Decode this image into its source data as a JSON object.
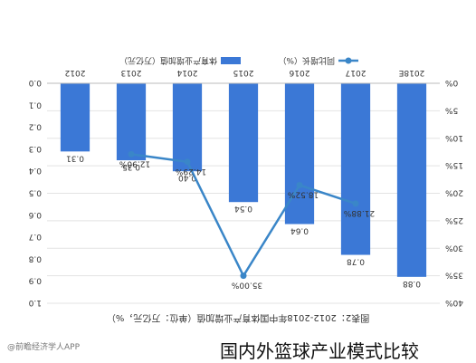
{
  "caption": "国内外篮球产业模式比较",
  "source": "@前瞻经济学人APP",
  "chart_data": {
    "type": "bar",
    "title": "图表2：2012-2018年中国体育产业增加值（单位：万亿元，%）",
    "categories": [
      "2018E",
      "2017",
      "2016",
      "2015",
      "2014",
      "2013",
      "2012"
    ],
    "series": [
      {
        "name": "体育产业增加值（万亿元）",
        "type": "bar",
        "axis": "right",
        "values": [
          0.88,
          0.78,
          0.64,
          0.54,
          0.4,
          0.35,
          0.31
        ],
        "labels": [
          "0.88",
          "0.78",
          "0.64",
          "0.54",
          "0.40",
          "0.35",
          "0.31"
        ]
      },
      {
        "name": "同比增长（%）",
        "type": "line",
        "axis": "left",
        "values": [
          null,
          21.88,
          18.52,
          35.0,
          14.29,
          12.9,
          null
        ],
        "labels": [
          "",
          "21.88%",
          "18.52%",
          "35.00%",
          "14.29%",
          "12.90%",
          ""
        ]
      }
    ],
    "left_axis": {
      "ylim": [
        0,
        40
      ],
      "ticks": [
        "0%",
        "5%",
        "10%",
        "15%",
        "20%",
        "25%",
        "30%",
        "35%",
        "40%"
      ]
    },
    "right_axis": {
      "ylim": [
        0,
        1.0
      ],
      "ticks": [
        "0.0",
        "0.1",
        "0.2",
        "0.3",
        "0.4",
        "0.5",
        "0.6",
        "0.7",
        "0.8",
        "0.9",
        "1.0"
      ]
    },
    "legend_position": "bottom",
    "grid": true,
    "orientation": "rotated 180 degrees",
    "colors": {
      "bar": "#3b78d6",
      "line": "#3a86c8",
      "grid": "#e3e3e3",
      "text": "#333333"
    }
  }
}
